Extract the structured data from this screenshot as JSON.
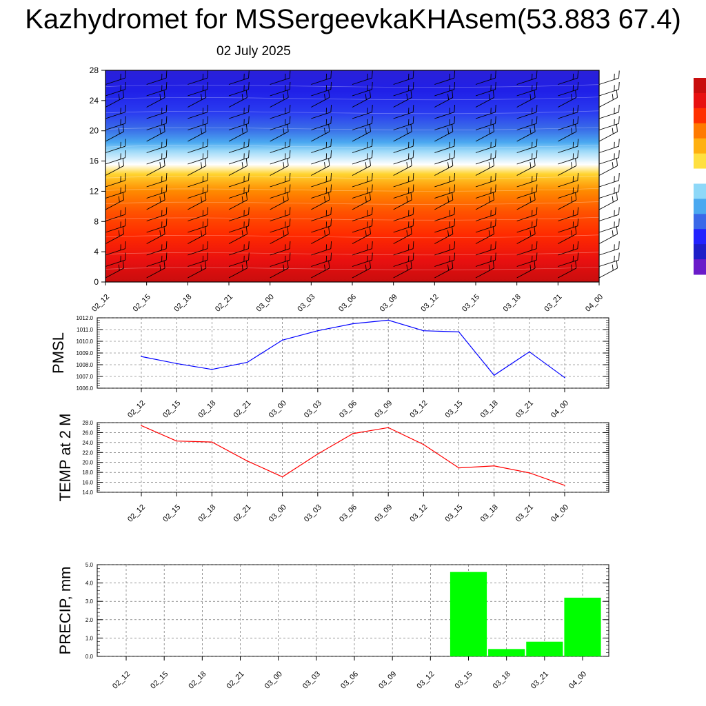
{
  "title": "Kazhydromet for MSSergeevkaKHAsem(53.883 67.4)",
  "subtitle": "02 July 2025",
  "time_labels": [
    "02_12",
    "02_15",
    "02_18",
    "02_21",
    "03_00",
    "03_03",
    "03_06",
    "03_09",
    "03_12",
    "03_15",
    "03_18",
    "03_21",
    "04_00"
  ],
  "chart_data": [
    {
      "type": "heatmap",
      "title": "",
      "xlabel": "",
      "ylabel": "",
      "x": [
        "02_12",
        "02_15",
        "02_18",
        "02_21",
        "03_00",
        "03_03",
        "03_06",
        "03_09",
        "03_12",
        "03_15",
        "03_18",
        "03_21",
        "04_00"
      ],
      "yticks": [
        0,
        4,
        8,
        12,
        16,
        20,
        24,
        28
      ],
      "ylim": [
        0,
        28
      ],
      "colormap": [
        "#6a1bc9",
        "#1e1ec8",
        "#2222ff",
        "#3a68e8",
        "#4aa8f0",
        "#8ed8f8",
        "#ffffff",
        "#ffe040",
        "#ffb010",
        "#ff7a00",
        "#ff3000",
        "#e81010",
        "#c80d0d"
      ],
      "wind_barbs": true
    },
    {
      "type": "line",
      "ylabel": "PMSL",
      "x": [
        "02_12",
        "02_15",
        "02_18",
        "02_21",
        "03_00",
        "03_03",
        "03_06",
        "03_09",
        "03_12",
        "03_15",
        "03_18",
        "03_21",
        "04_00"
      ],
      "values": [
        1008.7,
        1008.1,
        1007.6,
        1008.2,
        1010.1,
        1010.9,
        1011.5,
        1011.8,
        1010.9,
        1010.8,
        1007.1,
        1009.1,
        1006.9
      ],
      "ylim": [
        1006.0,
        1012.0
      ],
      "yticks": [
        "1006.0",
        "1007.0",
        "1008.0",
        "1009.0",
        "1010.0",
        "1011.0",
        "1012.0"
      ],
      "color": "#0000ff",
      "grid": true
    },
    {
      "type": "line",
      "ylabel": "TEMP at 2 M",
      "x": [
        "02_12",
        "02_15",
        "02_18",
        "02_21",
        "03_00",
        "03_03",
        "03_06",
        "03_09",
        "03_12",
        "03_15",
        "03_18",
        "03_21",
        "04_00"
      ],
      "values": [
        27.4,
        24.3,
        24.1,
        20.3,
        17.1,
        21.7,
        25.8,
        27.0,
        23.6,
        18.9,
        19.3,
        17.9,
        15.4
      ],
      "ylim": [
        14.0,
        28.0
      ],
      "yticks": [
        "14.0",
        "16.0",
        "18.0",
        "20.0",
        "22.0",
        "24.0",
        "26.0",
        "28.0"
      ],
      "color": "#ff0000",
      "grid": true
    },
    {
      "type": "bar",
      "ylabel": "PRECIP, mm",
      "categories": [
        "02_12",
        "02_15",
        "02_18",
        "02_21",
        "03_00",
        "03_03",
        "03_06",
        "03_09",
        "03_12",
        "03_15",
        "03_18",
        "03_21",
        "04_00"
      ],
      "values": [
        0,
        0,
        0,
        0,
        0,
        0,
        0,
        0,
        0,
        4.6,
        0.4,
        0.8,
        3.2
      ],
      "ylim": [
        0.0,
        5.0
      ],
      "yticks": [
        "0.0",
        "1.0",
        "2.0",
        "3.0",
        "4.0",
        "5.0"
      ],
      "color": "#00ff00",
      "grid": true
    }
  ]
}
